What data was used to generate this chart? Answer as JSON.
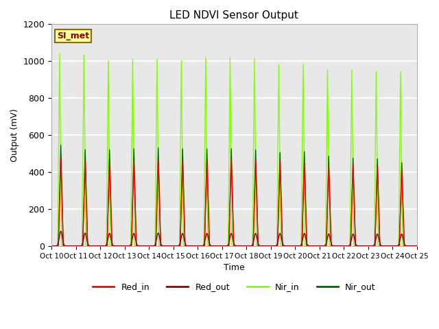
{
  "title": "LED NDVI Sensor Output",
  "xlabel": "Time",
  "ylabel": "Output (mV)",
  "ylim": [
    0,
    1200
  ],
  "num_cycles": 15,
  "ax_background": "#e8e8e8",
  "grid_color": "white",
  "colors": {
    "Red_in": "#ff0000",
    "Red_out": "#8b0000",
    "Nir_in": "#80ff00",
    "Nir_out": "#006400"
  },
  "x_tick_labels": [
    "Oct 10",
    "Oct 11",
    "Oct 12",
    "Oct 13",
    "Oct 14",
    "Oct 15",
    "Oct 16",
    "Oct 17",
    "Oct 18",
    "Oct 19",
    "Oct 20",
    "Oct 21",
    "Oct 22",
    "Oct 23",
    "Oct 24",
    "Oct 25"
  ],
  "annotation_text": "SI_met",
  "annotation_color": "#8b0000",
  "annotation_bg": "#ffff99",
  "annotation_border": "#8b6914",
  "nir_in_peaks": [
    1050,
    1040,
    1010,
    1020,
    1020,
    1010,
    1030,
    1030,
    1020,
    990,
    990,
    960,
    960,
    950,
    950
  ],
  "nir_out_peaks": [
    550,
    525,
    525,
    530,
    535,
    530,
    530,
    530,
    525,
    510,
    515,
    490,
    480,
    475,
    455
  ],
  "red_in_peaks": [
    480,
    460,
    450,
    460,
    465,
    460,
    475,
    475,
    465,
    460,
    460,
    440,
    440,
    435,
    425
  ],
  "red_out_peaks": [
    80,
    70,
    68,
    68,
    70,
    68,
    68,
    68,
    68,
    68,
    68,
    65,
    65,
    65,
    65
  ]
}
